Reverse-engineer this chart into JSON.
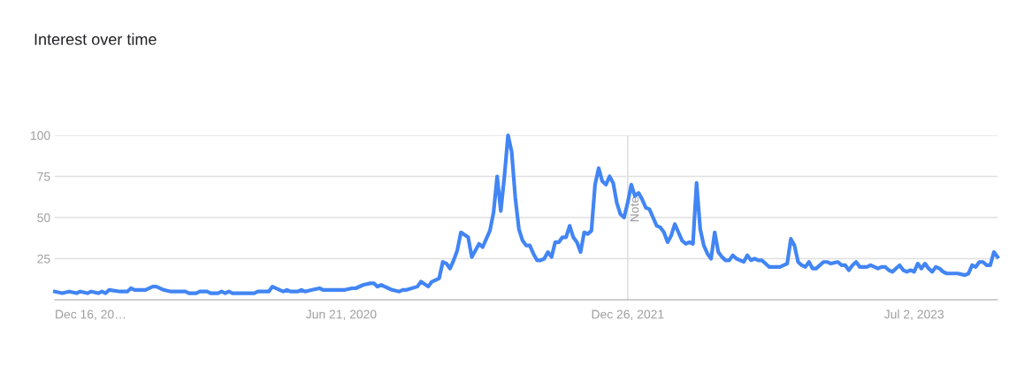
{
  "chart_data": {
    "type": "line",
    "title": "Interest over time",
    "xlim": [
      "2018-12-16",
      "2023-12-10"
    ],
    "xticks": [
      {
        "value": "2018-12-16",
        "label": "Dec 16, 20…"
      },
      {
        "value": "2020-06-21",
        "label": "Jun 21, 2020"
      },
      {
        "value": "2021-12-26",
        "label": "Dec 26, 2021"
      },
      {
        "value": "2023-07-02",
        "label": "Jul 2, 2023"
      }
    ],
    "ylim": [
      0,
      100
    ],
    "yticks": [
      25,
      50,
      75,
      100
    ],
    "grid": "y",
    "marker": "none",
    "line_style": "solid",
    "ref_lines": [
      {
        "axis": "x",
        "value": "2021-12-26",
        "label": "Note",
        "color": "#e0e0e0"
      }
    ],
    "series": [
      {
        "color": "#4285f4",
        "x": [
          "2018-12-16",
          "2018-12-30",
          "2019-01-13",
          "2019-01-27",
          "2019-02-03",
          "2019-02-17",
          "2019-02-24",
          "2019-03-10",
          "2019-03-17",
          "2019-03-24",
          "2019-03-31",
          "2019-04-21",
          "2019-05-05",
          "2019-05-12",
          "2019-05-19",
          "2019-06-09",
          "2019-06-23",
          "2019-06-30",
          "2019-07-14",
          "2019-07-28",
          "2019-08-25",
          "2019-09-01",
          "2019-09-15",
          "2019-09-22",
          "2019-10-06",
          "2019-10-13",
          "2019-10-27",
          "2019-11-03",
          "2019-11-10",
          "2019-11-17",
          "2019-11-24",
          "2020-01-05",
          "2020-01-12",
          "2020-02-02",
          "2020-02-09",
          "2020-02-23",
          "2020-03-01",
          "2020-03-08",
          "2020-03-15",
          "2020-03-29",
          "2020-04-05",
          "2020-04-12",
          "2020-04-26",
          "2020-05-10",
          "2020-05-17",
          "2020-06-28",
          "2020-07-12",
          "2020-07-19",
          "2020-08-02",
          "2020-08-16",
          "2020-08-23",
          "2020-08-30",
          "2020-09-06",
          "2020-09-13",
          "2020-09-20",
          "2020-09-27",
          "2020-10-11",
          "2020-10-18",
          "2020-10-25",
          "2020-11-15",
          "2020-11-22",
          "2020-12-06",
          "2020-12-13",
          "2020-12-27",
          "2021-01-03",
          "2021-01-10",
          "2021-01-17",
          "2021-01-24",
          "2021-01-31",
          "2021-02-07",
          "2021-02-21",
          "2021-02-28",
          "2021-03-07",
          "2021-03-14",
          "2021-03-21",
          "2021-03-28",
          "2021-04-04",
          "2021-04-11",
          "2021-04-18",
          "2021-04-25",
          "2021-05-02",
          "2021-05-09",
          "2021-05-16",
          "2021-05-23",
          "2021-05-30",
          "2021-06-06",
          "2021-06-13",
          "2021-06-20",
          "2021-06-27",
          "2021-07-04",
          "2021-07-11",
          "2021-07-18",
          "2021-07-25",
          "2021-08-01",
          "2021-08-08",
          "2021-08-15",
          "2021-08-22",
          "2021-08-29",
          "2021-09-05",
          "2021-09-12",
          "2021-09-19",
          "2021-09-26",
          "2021-10-03",
          "2021-10-10",
          "2021-10-17",
          "2021-10-24",
          "2021-10-31",
          "2021-11-07",
          "2021-11-14",
          "2021-11-21",
          "2021-11-28",
          "2021-12-05",
          "2021-12-12",
          "2021-12-19",
          "2021-12-26",
          "2022-01-02",
          "2022-01-09",
          "2022-01-16",
          "2022-01-23",
          "2022-01-30",
          "2022-02-06",
          "2022-02-13",
          "2022-02-20",
          "2022-02-27",
          "2022-03-06",
          "2022-03-13",
          "2022-03-20",
          "2022-03-27",
          "2022-04-03",
          "2022-04-10",
          "2022-04-17",
          "2022-04-24",
          "2022-05-01",
          "2022-05-08",
          "2022-05-15",
          "2022-05-22",
          "2022-05-29",
          "2022-06-05",
          "2022-06-12",
          "2022-06-19",
          "2022-06-26",
          "2022-07-03",
          "2022-07-10",
          "2022-07-17",
          "2022-07-24",
          "2022-07-31",
          "2022-08-07",
          "2022-08-14",
          "2022-08-21",
          "2022-08-28",
          "2022-09-04",
          "2022-09-11",
          "2022-09-18",
          "2022-09-25",
          "2022-10-16",
          "2022-10-30",
          "2022-11-06",
          "2022-11-13",
          "2022-11-20",
          "2022-11-27",
          "2022-12-04",
          "2022-12-11",
          "2022-12-18",
          "2022-12-25",
          "2023-01-08",
          "2023-01-15",
          "2023-01-22",
          "2023-02-05",
          "2023-02-12",
          "2023-02-19",
          "2023-02-26",
          "2023-03-05",
          "2023-03-12",
          "2023-03-19",
          "2023-04-02",
          "2023-04-09",
          "2023-04-23",
          "2023-04-30",
          "2023-05-07",
          "2023-05-14",
          "2023-05-21",
          "2023-06-04",
          "2023-06-11",
          "2023-06-18",
          "2023-06-25",
          "2023-07-02",
          "2023-07-09",
          "2023-07-16",
          "2023-07-23",
          "2023-07-30",
          "2023-08-06",
          "2023-08-13",
          "2023-08-20",
          "2023-08-27",
          "2023-09-03",
          "2023-09-24",
          "2023-10-08",
          "2023-10-15",
          "2023-10-22",
          "2023-10-29",
          "2023-11-05",
          "2023-11-12",
          "2023-11-19",
          "2023-11-26",
          "2023-12-03",
          "2023-12-10"
        ],
        "values": [
          5,
          4,
          5,
          4,
          5,
          4,
          5,
          4,
          5,
          4,
          6,
          5,
          5,
          7,
          6,
          6,
          8,
          8,
          6,
          5,
          5,
          4,
          4,
          5,
          5,
          4,
          4,
          5,
          4,
          5,
          4,
          4,
          5,
          5,
          8,
          6,
          5,
          6,
          5,
          5,
          6,
          5,
          6,
          7,
          6,
          6,
          7,
          7,
          9,
          10,
          10,
          8,
          9,
          8,
          7,
          6,
          5,
          6,
          6,
          8,
          11,
          8,
          11,
          13,
          23,
          22,
          19,
          24,
          30,
          41,
          38,
          26,
          30,
          34,
          32,
          37,
          42,
          53,
          75,
          54,
          75,
          100,
          90,
          62,
          43,
          36,
          33,
          33,
          28,
          24,
          24,
          25,
          29,
          26,
          35,
          35,
          38,
          38,
          45,
          38,
          35,
          29,
          41,
          40,
          42,
          70,
          80,
          72,
          70,
          75,
          71,
          59,
          52,
          50,
          59,
          70,
          63,
          65,
          61,
          56,
          55,
          50,
          45,
          44,
          41,
          35,
          39,
          46,
          41,
          36,
          34,
          35,
          34,
          71,
          43,
          33,
          28,
          25,
          41,
          29,
          26,
          24,
          24,
          27,
          25,
          24,
          23,
          27,
          24,
          25,
          24,
          24,
          22,
          20,
          20,
          22,
          37,
          33,
          23,
          21,
          20,
          23,
          19,
          19,
          23,
          23,
          22,
          23,
          21,
          21,
          18,
          21,
          23,
          20,
          20,
          21,
          19,
          20,
          20,
          18,
          17,
          21,
          18,
          17,
          18,
          17,
          22,
          19,
          22,
          19,
          17,
          20,
          19,
          17,
          16,
          16,
          15,
          16,
          21,
          20,
          23,
          23,
          21,
          21,
          29,
          26
        ]
      }
    ]
  }
}
